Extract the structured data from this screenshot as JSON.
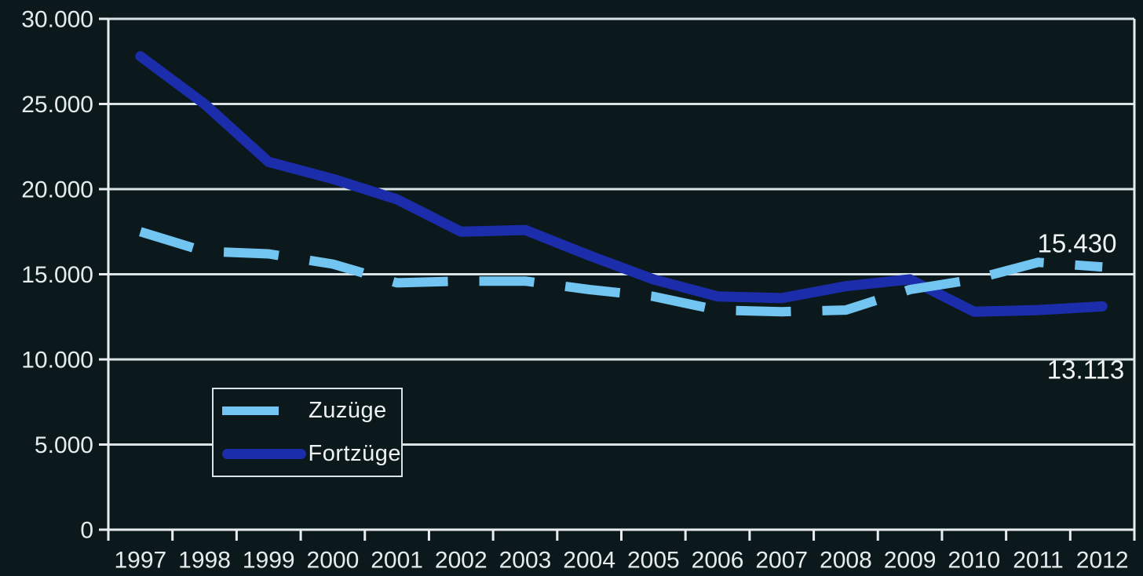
{
  "chart_data": {
    "type": "line",
    "title": "",
    "categories": [
      "1997",
      "1998",
      "1999",
      "2000",
      "2001",
      "2002",
      "2003",
      "2004",
      "2005",
      "2006",
      "2007",
      "2008",
      "2009",
      "2010",
      "2011",
      "2012"
    ],
    "series": [
      {
        "name": "Zuzüge",
        "color": "#72c5f0",
        "style": "dashed",
        "values": [
          17500,
          16350,
          16200,
          15600,
          14500,
          14600,
          14600,
          14100,
          13700,
          12900,
          12800,
          12900,
          14100,
          14700,
          15700,
          15430
        ]
      },
      {
        "name": "Fortzüge",
        "color": "#1c2dab",
        "style": "solid",
        "values": [
          27800,
          25000,
          21600,
          20600,
          19400,
          17500,
          17600,
          16100,
          14700,
          13700,
          13600,
          14300,
          14700,
          12800,
          12900,
          13113
        ]
      }
    ],
    "ylim": [
      0,
      30000
    ],
    "yticks": [
      0,
      5000,
      10000,
      15000,
      20000,
      25000,
      30000
    ],
    "ytick_labels": [
      "0",
      "5.000",
      "10.000",
      "15.000",
      "20.000",
      "25.000",
      "30.000"
    ],
    "grid": "horizontal",
    "legend_position": "inside-bottom-left",
    "annotations": [
      {
        "text": "15.430",
        "series": "Zuzüge",
        "category": "2012",
        "x": 1372,
        "y": 310
      },
      {
        "text": "13.113",
        "series": "Fortzüge",
        "category": "2012",
        "x": 1383,
        "y": 471
      }
    ],
    "colors": {
      "background": "#0c191c",
      "gridline": "#d9e2e4",
      "axis": "#e8eef0",
      "tick_text": "#e6ecee",
      "annotation_text": "#f0f4f5"
    }
  }
}
